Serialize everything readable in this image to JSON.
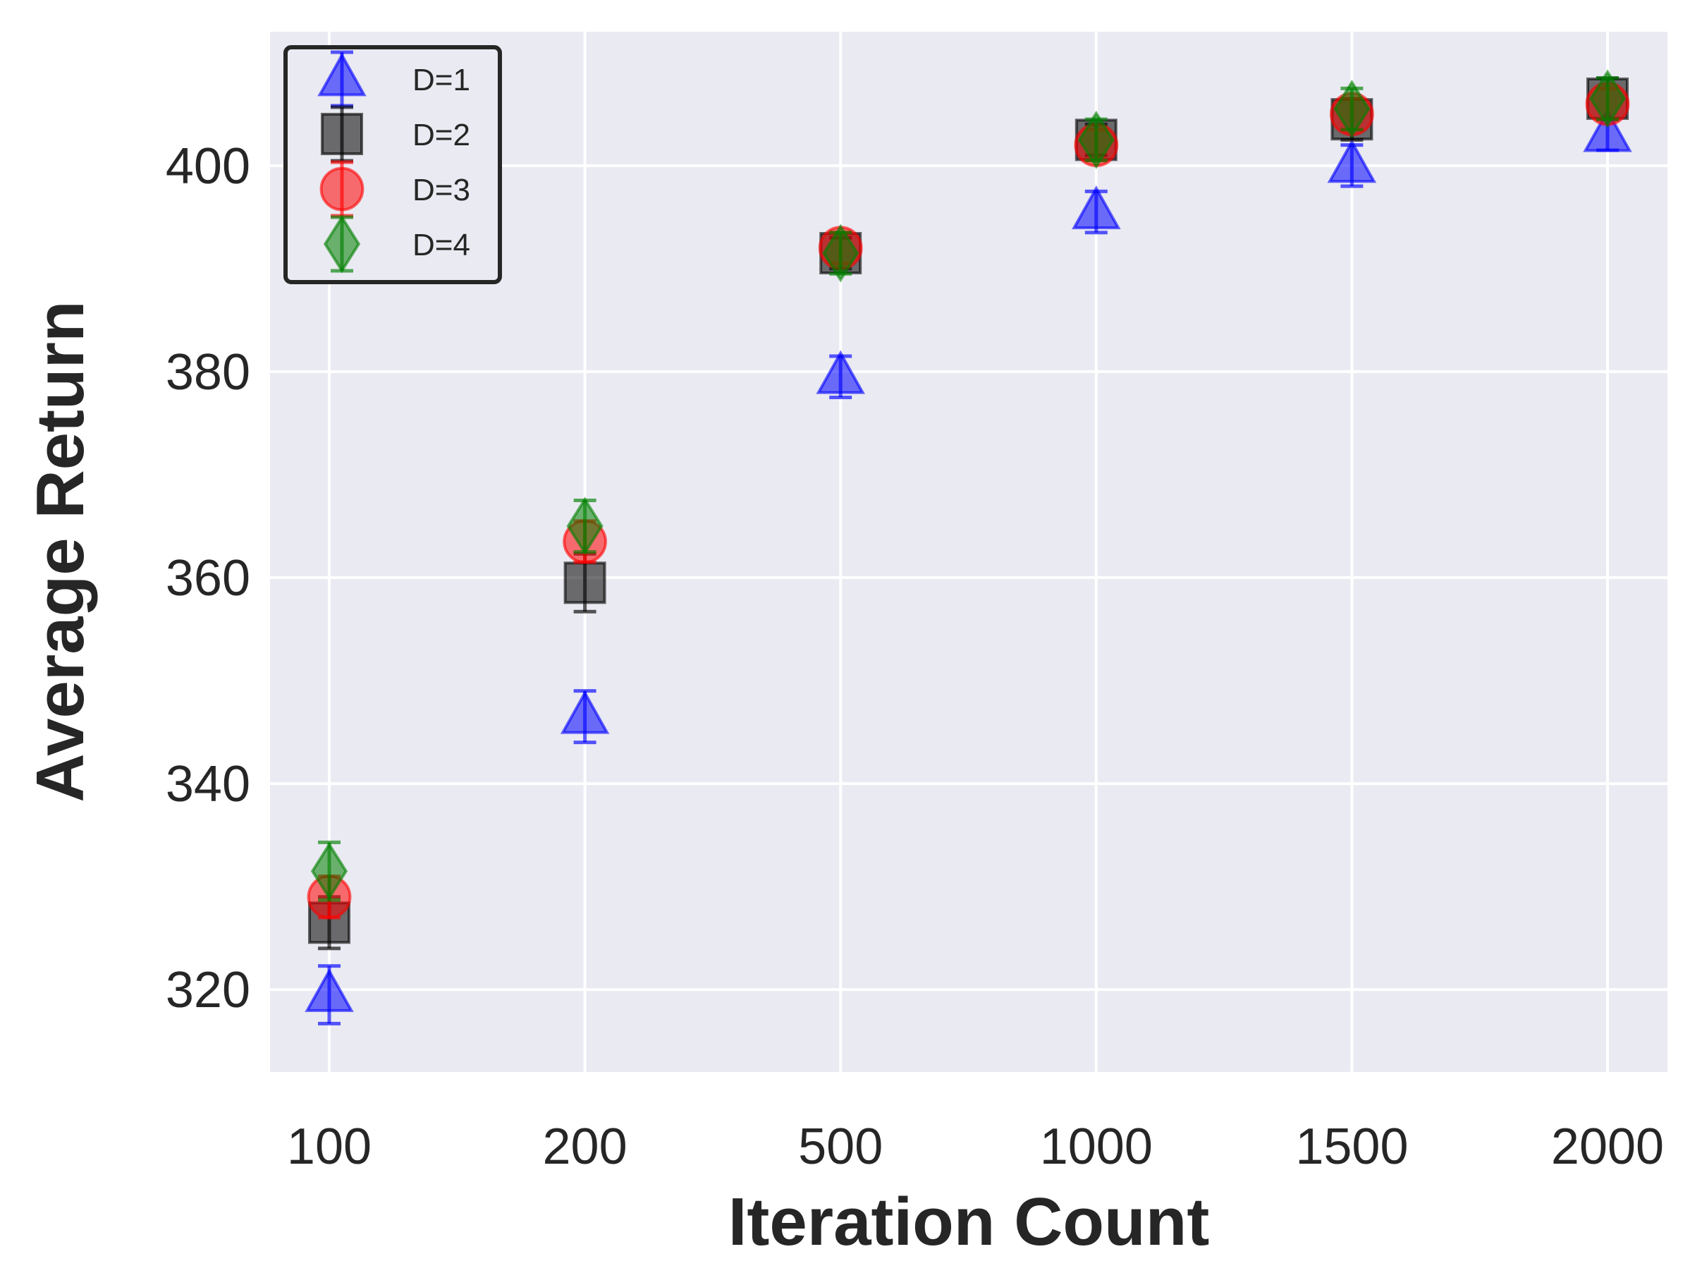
{
  "chart_data": {
    "type": "scatter",
    "xlabel": "Iteration Count",
    "ylabel": "Average Return",
    "categories": [
      "100",
      "200",
      "500",
      "1000",
      "1500",
      "2000"
    ],
    "ylim": [
      312,
      413
    ],
    "yticks": [
      320,
      340,
      360,
      380,
      400
    ],
    "grid": true,
    "legend_position": "top-left",
    "series": [
      {
        "name": "D=1",
        "marker": "triangle",
        "color": "#0000ff",
        "values": [
          319.5,
          346.5,
          379.5,
          395.5,
          400.0,
          403.0
        ],
        "errors": [
          2.8,
          2.5,
          2.0,
          2.0,
          2.0,
          1.5
        ]
      },
      {
        "name": "D=2",
        "marker": "square",
        "color": "#000000",
        "values": [
          326.5,
          359.5,
          391.5,
          402.5,
          404.5,
          406.5
        ],
        "errors": [
          2.5,
          2.8,
          1.5,
          1.5,
          2.0,
          2.0
        ]
      },
      {
        "name": "D=3",
        "marker": "circle",
        "color": "#ff0000",
        "values": [
          329.0,
          363.5,
          392.0,
          402.0,
          405.0,
          406.0
        ],
        "errors": [
          2.0,
          2.0,
          1.5,
          1.5,
          1.5,
          1.5
        ]
      },
      {
        "name": "D=4",
        "marker": "diamond",
        "color": "#008000",
        "values": [
          331.5,
          365.0,
          391.5,
          402.5,
          405.5,
          406.5
        ],
        "errors": [
          2.8,
          2.5,
          2.0,
          2.0,
          2.0,
          2.0
        ]
      }
    ]
  }
}
